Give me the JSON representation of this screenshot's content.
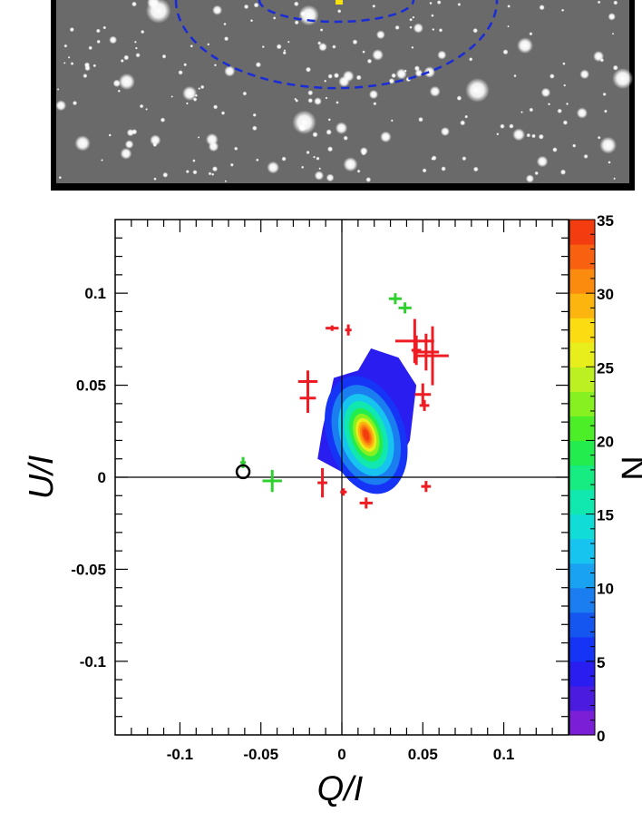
{
  "chart_data": {
    "type": "scatter",
    "title": "",
    "xlabel": "Q/I",
    "ylabel": "U/I",
    "xlim": [
      -0.14,
      0.14
    ],
    "ylim": [
      -0.14,
      0.14
    ],
    "x_ticks": [
      "-0.1",
      "-0.05",
      "0",
      "0.05",
      "0.1"
    ],
    "y_ticks": [
      "0.1",
      "0.05",
      "0",
      "-0.05",
      "-0.1"
    ],
    "x_tick_values": [
      -0.1,
      -0.05,
      0,
      0.05,
      0.1
    ],
    "y_tick_values": [
      0.1,
      0.05,
      0,
      -0.05,
      -0.1
    ],
    "colorbar": {
      "label": "N",
      "range": [
        0,
        35
      ],
      "ticks": [
        "35",
        "30",
        "25",
        "20",
        "15",
        "10",
        "5",
        "0"
      ],
      "tick_values": [
        35,
        30,
        25,
        20,
        15,
        10,
        5,
        0
      ],
      "colors": [
        "#7a1fd6",
        "#4b1ce0",
        "#2a1df0",
        "#1534f5",
        "#1656f0",
        "#1a7ef0",
        "#1aa2f2",
        "#17c4f0",
        "#12dcd6",
        "#11e8b0",
        "#16ec82",
        "#22ec4e",
        "#4cee27",
        "#86f020",
        "#bdf023",
        "#e8ee1c",
        "#fbdc12",
        "#fbb50e",
        "#fa8b0e",
        "#f7610f",
        "#f33c10"
      ]
    },
    "crosshair": {
      "x": 0,
      "y": 0
    },
    "density_peak": {
      "x": 0.015,
      "y": 0.023,
      "value": 35
    },
    "red_points": [
      {
        "x": -0.006,
        "y": 0.081,
        "xerr": 0.004,
        "yerr": 0.001
      },
      {
        "x": 0.004,
        "y": 0.08,
        "xerr": 0.002,
        "yerr": 0.003
      },
      {
        "x": 0.045,
        "y": 0.074,
        "xerr": 0.012,
        "yerr": 0.012
      },
      {
        "x": 0.052,
        "y": 0.068,
        "xerr": 0.008,
        "yerr": 0.01
      },
      {
        "x": 0.056,
        "y": 0.066,
        "xerr": 0.01,
        "yerr": 0.016
      },
      {
        "x": 0.046,
        "y": 0.069,
        "xerr": 0.003,
        "yerr": 0.008
      },
      {
        "x": -0.021,
        "y": 0.052,
        "xerr": 0.006,
        "yerr": 0.006
      },
      {
        "x": -0.021,
        "y": 0.043,
        "xerr": 0.005,
        "yerr": 0.008
      },
      {
        "x": 0.05,
        "y": 0.045,
        "xerr": 0.005,
        "yerr": 0.006
      },
      {
        "x": 0.051,
        "y": 0.039,
        "xerr": 0.003,
        "yerr": 0.003
      },
      {
        "x": -0.012,
        "y": -0.003,
        "xerr": 0.003,
        "yerr": 0.008
      },
      {
        "x": 0.001,
        "y": -0.008,
        "xerr": 0.002,
        "yerr": 0.002
      },
      {
        "x": 0.015,
        "y": -0.014,
        "xerr": 0.004,
        "yerr": 0.003
      },
      {
        "x": 0.052,
        "y": -0.005,
        "xerr": 0.003,
        "yerr": 0.003
      }
    ],
    "green_points": [
      {
        "x": 0.033,
        "y": 0.097,
        "xerr": 0.004,
        "yerr": 0.003
      },
      {
        "x": 0.039,
        "y": 0.092,
        "xerr": 0.004,
        "yerr": 0.003
      },
      {
        "x": -0.043,
        "y": -0.002,
        "xerr": 0.006,
        "yerr": 0.006
      },
      {
        "x": -0.061,
        "y": 0.008,
        "xerr": 0.0,
        "yerr": 0.003
      }
    ],
    "black_circle": {
      "x": -0.061,
      "y": 0.003
    }
  }
}
